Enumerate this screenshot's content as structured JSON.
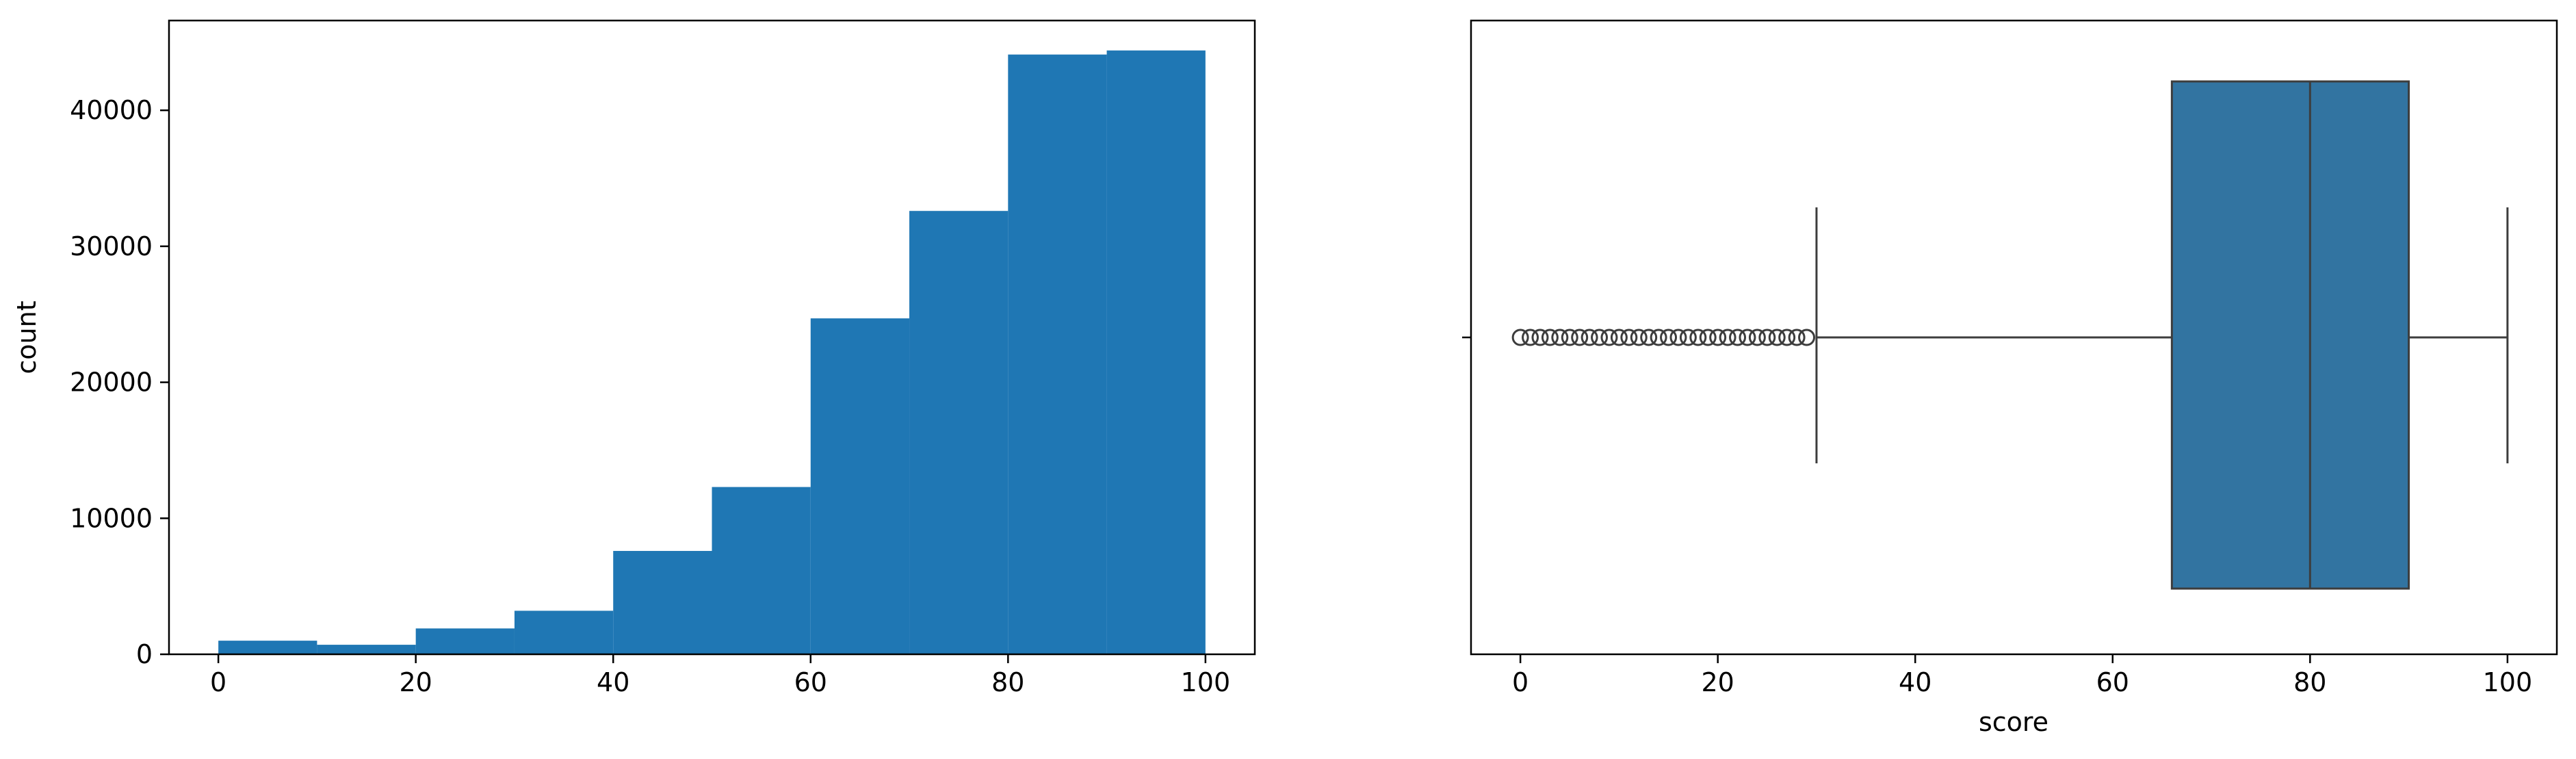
{
  "chart_data": [
    {
      "type": "bar",
      "subtype": "histogram",
      "title": "",
      "xlabel": "",
      "ylabel": "count",
      "bins": [
        {
          "x0": 0,
          "x1": 10,
          "count": 1000
        },
        {
          "x0": 10,
          "x1": 20,
          "count": 700
        },
        {
          "x0": 20,
          "x1": 30,
          "count": 1900
        },
        {
          "x0": 30,
          "x1": 40,
          "count": 3200
        },
        {
          "x0": 40,
          "x1": 50,
          "count": 7600
        },
        {
          "x0": 50,
          "x1": 60,
          "count": 12300
        },
        {
          "x0": 60,
          "x1": 70,
          "count": 24700
        },
        {
          "x0": 70,
          "x1": 80,
          "count": 32600
        },
        {
          "x0": 80,
          "x1": 90,
          "count": 44100
        },
        {
          "x0": 90,
          "x1": 100,
          "count": 44400
        }
      ],
      "xlim": [
        -5,
        105
      ],
      "ylim": [
        0,
        46600
      ],
      "xticks": [
        0,
        20,
        40,
        60,
        80,
        100
      ],
      "xtick_labels": [
        "0",
        "20",
        "40",
        "60",
        "80",
        "100"
      ],
      "yticks": [
        0,
        10000,
        20000,
        30000,
        40000
      ],
      "ytick_labels": [
        "0",
        "10000",
        "20000",
        "30000",
        "40000"
      ],
      "color": "#1f77b4",
      "grid": false,
      "legend": "none"
    },
    {
      "type": "box",
      "title": "",
      "xlabel": "score",
      "ylabel": "",
      "q1": 66,
      "median": 80,
      "q3": 90,
      "whisker_low": 30,
      "whisker_high": 100,
      "outliers": [
        0,
        1,
        2,
        3,
        4,
        5,
        6,
        7,
        8,
        9,
        10,
        11,
        12,
        13,
        14,
        15,
        16,
        17,
        18,
        19,
        20,
        21,
        22,
        23,
        24,
        25,
        26,
        27,
        28,
        29
      ],
      "xlim": [
        -5,
        105
      ],
      "xticks": [
        0,
        20,
        40,
        60,
        80,
        100
      ],
      "xtick_labels": [
        "0",
        "20",
        "40",
        "60",
        "80",
        "100"
      ],
      "color": "#3274a1",
      "grid": false,
      "legend": "none"
    }
  ]
}
